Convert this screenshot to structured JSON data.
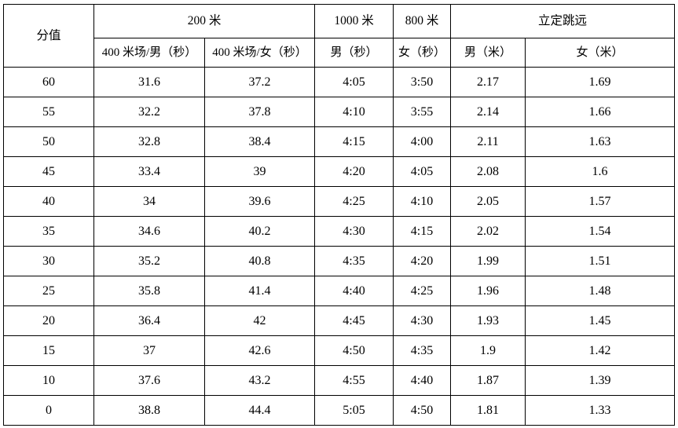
{
  "table": {
    "header": {
      "score_label": "分值",
      "group_200m": "200 米",
      "group_1000m": "1000 米",
      "group_800m": "800 米",
      "group_jump": "立定跳远",
      "sub_200m_male": "400 米场/男（秒）",
      "sub_200m_female": "400 米场/女（秒）",
      "sub_1000m_male": "男（秒）",
      "sub_800m_female": "女（秒）",
      "sub_jump_male": "男（米）",
      "sub_jump_female": "女（米）"
    },
    "rows": [
      [
        "60",
        "31.6",
        "37.2",
        "4:05",
        "3:50",
        "2.17",
        "1.69"
      ],
      [
        "55",
        "32.2",
        "37.8",
        "4:10",
        "3:55",
        "2.14",
        "1.66"
      ],
      [
        "50",
        "32.8",
        "38.4",
        "4:15",
        "4:00",
        "2.11",
        "1.63"
      ],
      [
        "45",
        "33.4",
        "39",
        "4:20",
        "4:05",
        "2.08",
        "1.6"
      ],
      [
        "40",
        "34",
        "39.6",
        "4:25",
        "4:10",
        "2.05",
        "1.57"
      ],
      [
        "35",
        "34.6",
        "40.2",
        "4:30",
        "4:15",
        "2.02",
        "1.54"
      ],
      [
        "30",
        "35.2",
        "40.8",
        "4:35",
        "4:20",
        "1.99",
        "1.51"
      ],
      [
        "25",
        "35.8",
        "41.4",
        "4:40",
        "4:25",
        "1.96",
        "1.48"
      ],
      [
        "20",
        "36.4",
        "42",
        "4:45",
        "4:30",
        "1.93",
        "1.45"
      ],
      [
        "15",
        "37",
        "42.6",
        "4:50",
        "4:35",
        "1.9",
        "1.42"
      ],
      [
        "10",
        "37.6",
        "43.2",
        "4:55",
        "4:40",
        "1.87",
        "1.39"
      ],
      [
        "0",
        "38.8",
        "44.4",
        "5:05",
        "4:50",
        "1.81",
        "1.33"
      ]
    ]
  }
}
